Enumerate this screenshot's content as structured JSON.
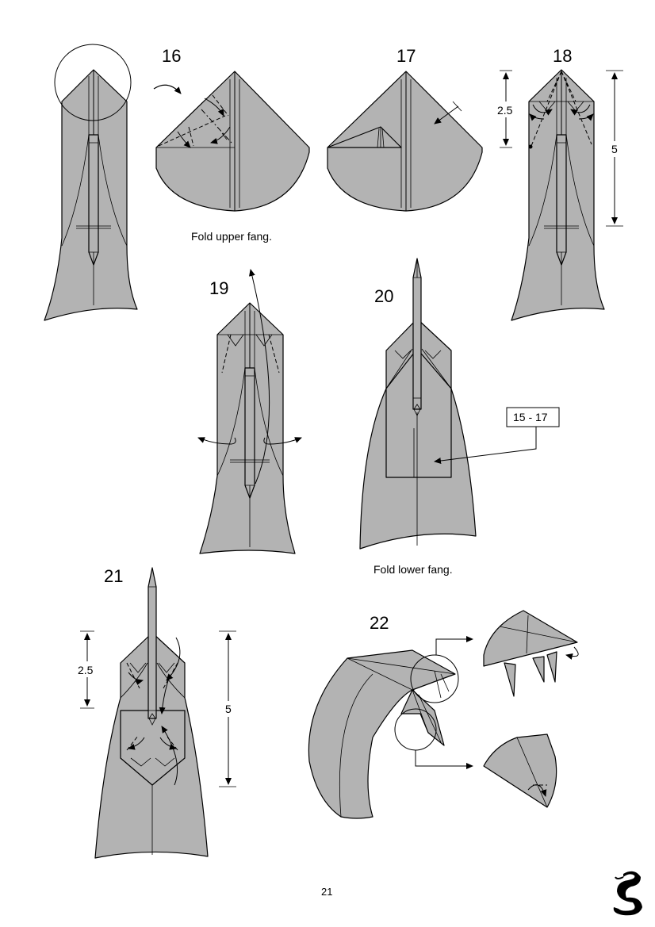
{
  "steps": {
    "s16": "16",
    "s17": "17",
    "s18": "18",
    "s19": "19",
    "s20": "20",
    "s21": "21",
    "s22": "22"
  },
  "captions": {
    "upper_fang": "Fold upper fang.",
    "lower_fang": "Fold lower fang."
  },
  "measurements": {
    "m18_small": "2.5",
    "m18_large": "5",
    "m21_small": "2.5",
    "m21_large": "5"
  },
  "repeat_label": "15 - 17",
  "page_number": "21",
  "colors": {
    "paper": "#b3b3b3",
    "line": "#000000"
  },
  "icons": {
    "logo": "cobra-logo"
  }
}
